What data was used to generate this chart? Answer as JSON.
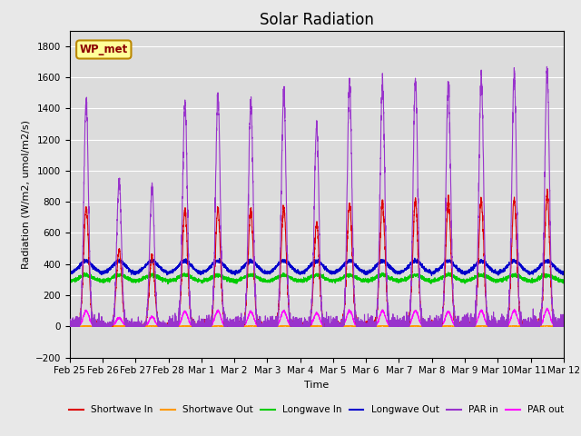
{
  "title": "Solar Radiation",
  "ylabel": "Radiation (W/m2, umol/m2/s)",
  "xlabel": "Time",
  "ylim": [
    -200,
    1900
  ],
  "yticks": [
    -200,
    0,
    200,
    400,
    600,
    800,
    1000,
    1200,
    1400,
    1600,
    1800
  ],
  "colors": {
    "shortwave_in": "#dd0000",
    "shortwave_out": "#ff9900",
    "longwave_in": "#00cc00",
    "longwave_out": "#0000cc",
    "par_in": "#9933cc",
    "par_out": "#ff00ff"
  },
  "legend_labels": [
    "Shortwave In",
    "Shortwave Out",
    "Longwave In",
    "Longwave Out",
    "PAR in",
    "PAR out"
  ],
  "background_color": "#dcdcdc",
  "grid_color": "#ffffff",
  "annotation_text": "WP_met",
  "annotation_bg": "#ffff99",
  "annotation_border": "#bb8800",
  "x_tick_labels": [
    "Feb 25",
    "Feb 26",
    "Feb 27",
    "Feb 28",
    "Mar 1",
    "Mar 2",
    "Mar 3",
    "Mar 4",
    "Mar 5",
    "Mar 6",
    "Mar 7",
    "Mar 8",
    "Mar 9",
    "Mar 10",
    "Mar 11",
    "Mar 12"
  ],
  "title_fontsize": 12,
  "label_fontsize": 8,
  "tick_fontsize": 7.5,
  "par_peaks": [
    1440,
    950,
    900,
    1450,
    1480,
    1440,
    1510,
    1300,
    1560,
    1560,
    1580,
    1550,
    1600,
    1620,
    1640
  ],
  "sw_peaks": [
    760,
    490,
    450,
    750,
    750,
    740,
    770,
    660,
    790,
    790,
    800,
    800,
    800,
    820,
    850
  ],
  "par_out_peaks": [
    100,
    55,
    60,
    95,
    100,
    95,
    100,
    85,
    100,
    100,
    100,
    95,
    100,
    100,
    110
  ],
  "lw_in_base": 290,
  "lw_out_base": 340
}
